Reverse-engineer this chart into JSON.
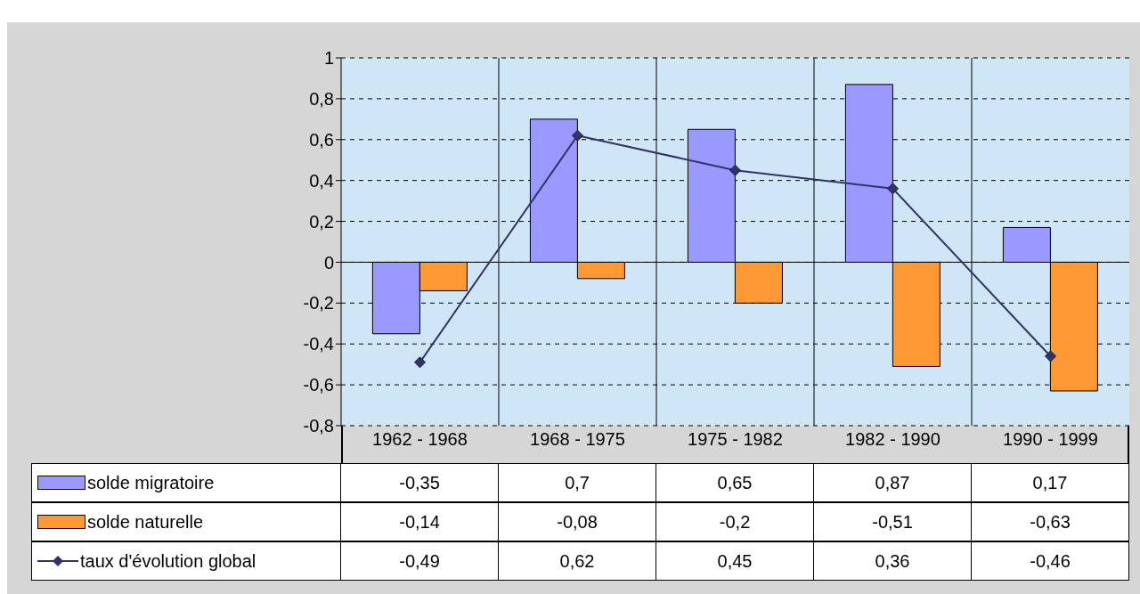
{
  "chart_data": {
    "type": "bar",
    "categories": [
      "1962 - 1968",
      "1968 - 1975",
      "1975 - 1982",
      "1982 - 1990",
      "1990 - 1999"
    ],
    "series": [
      {
        "name": "solde migratoire",
        "color": "#9999ff",
        "values": [
          -0.35,
          0.7,
          0.65,
          0.87,
          0.17
        ],
        "value_labels": [
          "-0,35",
          "0,7",
          "0,65",
          "0,87",
          "0,17"
        ]
      },
      {
        "name": "solde naturelle",
        "color": "#ff9933",
        "values": [
          -0.14,
          -0.08,
          -0.2,
          -0.51,
          -0.63
        ],
        "value_labels": [
          "-0,14",
          "-0,08",
          "-0,2",
          "-0,51",
          "-0,63"
        ]
      },
      {
        "name": "taux d'évolution global",
        "type": "line",
        "color": "#333366",
        "marker": "diamond",
        "values": [
          -0.49,
          0.62,
          0.45,
          0.36,
          -0.46
        ],
        "value_labels": [
          "-0,49",
          "0,62",
          "0,45",
          "0,36",
          "-0,46"
        ]
      }
    ],
    "ylim": [
      -0.8,
      1
    ],
    "yticks": [
      {
        "value": -0.8,
        "label": "-0,8"
      },
      {
        "value": -0.6,
        "label": "-0,6"
      },
      {
        "value": -0.4,
        "label": "-0,4"
      },
      {
        "value": -0.2,
        "label": "-0,2"
      },
      0,
      {
        "value": 0.2,
        "label": "0,2"
      },
      {
        "value": 0.4,
        "label": "0,4"
      },
      {
        "value": 0.6,
        "label": "0,6"
      },
      {
        "value": 0.8,
        "label": "0,8"
      },
      1
    ],
    "grid": true,
    "legend": "bottom left"
  }
}
